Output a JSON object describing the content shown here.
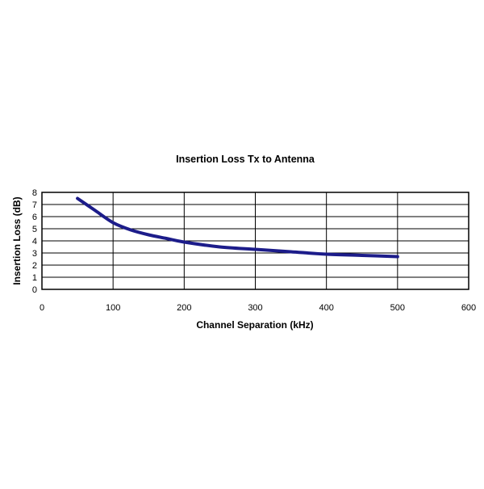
{
  "chart_data": {
    "type": "line",
    "title": "Insertion Loss Tx to Antenna",
    "xlabel": "Channel Separation (kHz)",
    "ylabel": "Insertion Loss (dB)",
    "xlim": [
      0,
      600
    ],
    "ylim": [
      0,
      8
    ],
    "x_ticks": [
      "0",
      "100",
      "200",
      "300",
      "400",
      "500",
      "600"
    ],
    "y_ticks": [
      "0",
      "1",
      "2",
      "3",
      "4",
      "5",
      "6",
      "7",
      "8"
    ],
    "grid": true,
    "legend": "none",
    "line_color": "#1c1c8a",
    "series": [
      {
        "x": [
          50,
          75,
          100,
          125,
          150,
          175,
          200,
          250,
          300,
          350,
          400,
          450,
          500
        ],
        "values": [
          7.5,
          6.5,
          5.5,
          4.9,
          4.5,
          4.2,
          3.9,
          3.5,
          3.3,
          3.1,
          2.9,
          2.8,
          2.7
        ]
      }
    ]
  }
}
